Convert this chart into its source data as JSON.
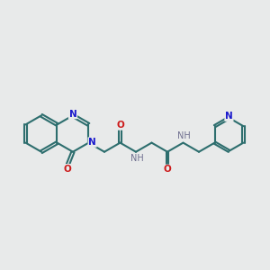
{
  "background_color": "#e8eaea",
  "bond_color": "#2d6e6e",
  "N_color": "#1a1acc",
  "O_color": "#cc1a1a",
  "NH_color": "#707090",
  "figsize": [
    3.0,
    3.0
  ],
  "dpi": 100,
  "xlim": [
    -4.6,
    5.4
  ],
  "ylim": [
    -2.6,
    2.6
  ]
}
